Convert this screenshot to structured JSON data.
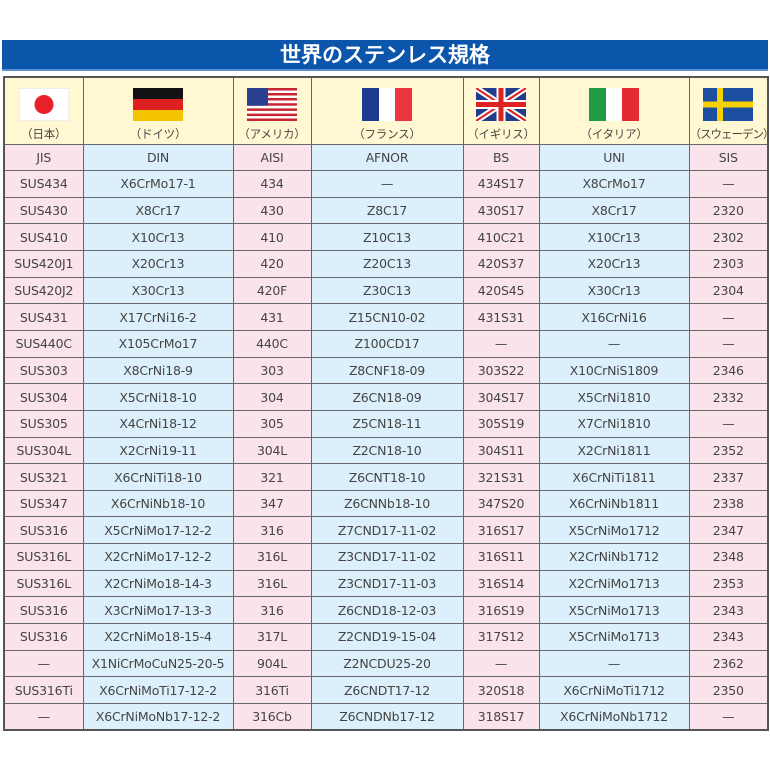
{
  "title": "世界のステンレス規格",
  "countries": [
    {
      "name": "（日本）",
      "flag": "japan-flag"
    },
    {
      "name": "（ドイツ）",
      "flag": "germany-flag"
    },
    {
      "name": "（アメリカ）",
      "flag": "usa-flag"
    },
    {
      "name": "（フランス）",
      "flag": "france-flag"
    },
    {
      "name": "（イギリス）",
      "flag": "uk-flag"
    },
    {
      "name": "（イタリア）",
      "flag": "italy-flag"
    },
    {
      "name": "（スウェーデン）",
      "flag": "sweden-flag"
    }
  ],
  "standards": [
    "JIS",
    "DIN",
    "AISI",
    "AFNOR",
    "BS",
    "UNI",
    "SIS"
  ],
  "rows": [
    [
      "SUS434",
      "X6CrMo17-1",
      "434",
      "—",
      "434S17",
      "X8CrMo17",
      "—"
    ],
    [
      "SUS430",
      "X8Cr17",
      "430",
      "Z8C17",
      "430S17",
      "X8Cr17",
      "2320"
    ],
    [
      "SUS410",
      "X10Cr13",
      "410",
      "Z10C13",
      "410C21",
      "X10Cr13",
      "2302"
    ],
    [
      "SUS420J1",
      "X20Cr13",
      "420",
      "Z20C13",
      "420S37",
      "X20Cr13",
      "2303"
    ],
    [
      "SUS420J2",
      "X30Cr13",
      "420F",
      "Z30C13",
      "420S45",
      "X30Cr13",
      "2304"
    ],
    [
      "SUS431",
      "X17CrNi16-2",
      "431",
      "Z15CN10-02",
      "431S31",
      "X16CrNi16",
      "—"
    ],
    [
      "SUS440C",
      "X105CrMo17",
      "440C",
      "Z100CD17",
      "—",
      "—",
      "—"
    ],
    [
      "SUS303",
      "X8CrNi18-9",
      "303",
      "Z8CNF18-09",
      "303S22",
      "X10CrNiS1809",
      "2346"
    ],
    [
      "SUS304",
      "X5CrNi18-10",
      "304",
      "Z6CN18-09",
      "304S17",
      "X5CrNi1810",
      "2332"
    ],
    [
      "SUS305",
      "X4CrNi18-12",
      "305",
      "Z5CN18-11",
      "305S19",
      "X7CrNi1810",
      "—"
    ],
    [
      "SUS304L",
      "X2CrNi19-11",
      "304L",
      "Z2CN18-10",
      "304S11",
      "X2CrNi1811",
      "2352"
    ],
    [
      "SUS321",
      "X6CrNiTi18-10",
      "321",
      "Z6CNT18-10",
      "321S31",
      "X6CrNiTi1811",
      "2337"
    ],
    [
      "SUS347",
      "X6CrNiNb18-10",
      "347",
      "Z6CNNb18-10",
      "347S20",
      "X6CrNiNb1811",
      "2338"
    ],
    [
      "SUS316",
      "X5CrNiMo17-12-2",
      "316",
      "Z7CND17-11-02",
      "316S17",
      "X5CrNiMo1712",
      "2347"
    ],
    [
      "SUS316L",
      "X2CrNiMo17-12-2",
      "316L",
      "Z3CND17-11-02",
      "316S11",
      "X2CrNiNb1712",
      "2348"
    ],
    [
      "SUS316L",
      "X2CrNiMo18-14-3",
      "316L",
      "Z3CND17-11-03",
      "316S14",
      "X2CrNiMo1713",
      "2353"
    ],
    [
      "SUS316",
      "X3CrNiMo17-13-3",
      "316",
      "Z6CND18-12-03",
      "316S19",
      "X5CrNiMo1713",
      "2343"
    ],
    [
      "SUS316",
      "X2CrNiMo18-15-4",
      "317L",
      "Z2CND19-15-04",
      "317S12",
      "X5CrNiMo1713",
      "2343"
    ],
    [
      "—",
      "X1NiCrMoCuN25-20-5",
      "904L",
      "Z2NCDU25-20",
      "—",
      "—",
      "2362"
    ],
    [
      "SUS316Ti",
      "X6CrNiMoTi17-12-2",
      "316Ti",
      "Z6CNDT17-12",
      "320S18",
      "X6CrNiMoTi1712",
      "2350"
    ],
    [
      "—",
      "X6CrNiMoNb17-12-2",
      "316Cb",
      "Z6CNDNb17-12",
      "318S17",
      "X6CrNiMoNb1712",
      "—"
    ]
  ]
}
